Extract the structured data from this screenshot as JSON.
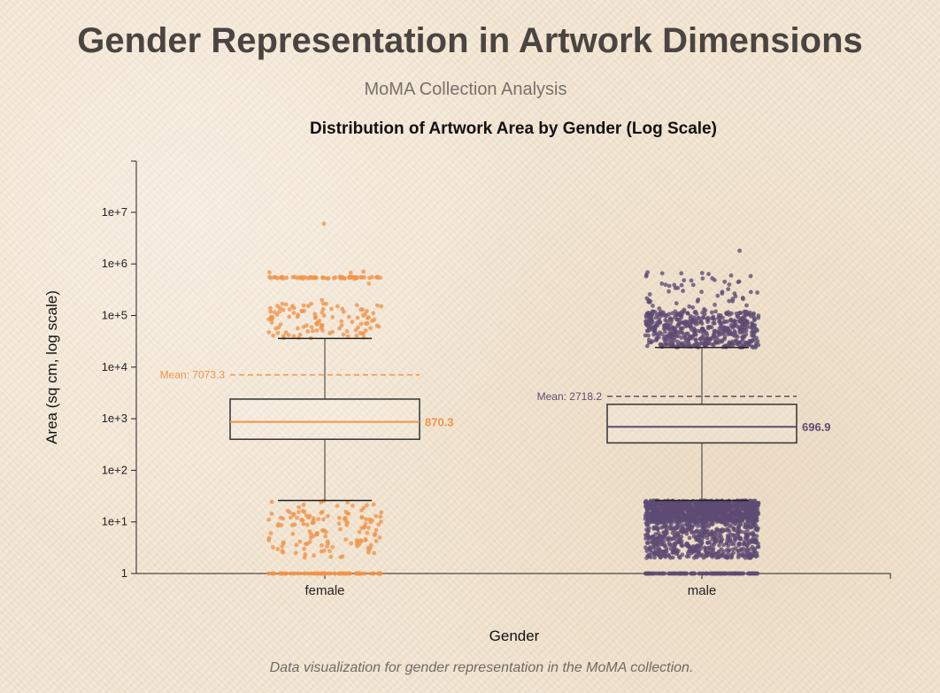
{
  "header": {
    "title": "Gender Representation in Artwork Dimensions",
    "subtitle": "MoMA Collection Analysis"
  },
  "footer": {
    "caption": "Data visualization for gender representation in the MoMA collection."
  },
  "chart_data": {
    "type": "box",
    "title": "Distribution of Artwork Area by Gender (Log Scale)",
    "xlabel": "Gender",
    "ylabel": "Area (sq cm, log scale)",
    "yscale": "log",
    "ylim": [
      1,
      100000000
    ],
    "yticks": [
      1,
      10,
      100,
      1000,
      10000,
      100000,
      1000000,
      10000000
    ],
    "ytick_labels": [
      "1",
      "1e+1",
      "1e+2",
      "1e+3",
      "1e+4",
      "1e+5",
      "1e+6",
      "1e+7"
    ],
    "categories": [
      "female",
      "male"
    ],
    "series": [
      {
        "name": "female",
        "color": "#f0944a",
        "q1": 400,
        "median": 870.3,
        "q3": 2400,
        "whisker_low": 26,
        "whisker_high": 36000,
        "mean": 7073.3,
        "mean_label": "Mean: 7073.3",
        "median_label": "870.3",
        "outlier_max": 6000000
      },
      {
        "name": "male",
        "color": "#5e4b73",
        "q1": 340,
        "median": 696.9,
        "q3": 1900,
        "whisker_low": 26,
        "whisker_high": 24000,
        "mean": 2718.2,
        "mean_label": "Mean: 2718.2",
        "median_label": "696.9",
        "outlier_max": 1800000
      }
    ],
    "grid": false,
    "legend": "none"
  }
}
